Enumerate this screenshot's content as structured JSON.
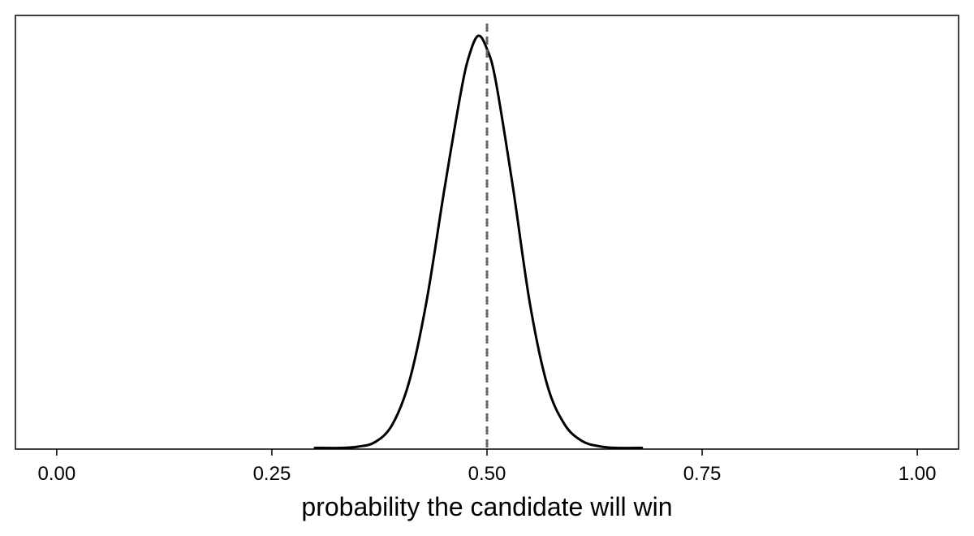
{
  "chart_data": {
    "type": "line",
    "title": "",
    "xlabel": "probability the candidate will win",
    "ylabel": "",
    "xlim": [
      -0.048,
      1.048
    ],
    "xticks": [
      0.0,
      0.25,
      0.5,
      0.75,
      1.0
    ],
    "xtick_labels": [
      "0.00",
      "0.25",
      "0.50",
      "0.75",
      "1.00"
    ],
    "yticks_visible": false,
    "grid": false,
    "legend": "none",
    "series": [
      {
        "kind": "density-curve",
        "color": "#000000",
        "x": [
          0.3,
          0.33,
          0.35,
          0.37,
          0.39,
          0.41,
          0.43,
          0.45,
          0.47,
          0.48,
          0.49,
          0.5,
          0.51,
          0.53,
          0.55,
          0.57,
          0.59,
          0.61,
          0.63,
          0.65,
          0.68
        ],
        "y": [
          0.0,
          0.0,
          0.003,
          0.014,
          0.056,
          0.162,
          0.355,
          0.615,
          0.858,
          0.947,
          0.99,
          0.958,
          0.883,
          0.628,
          0.345,
          0.151,
          0.057,
          0.017,
          0.004,
          0.0,
          0.0
        ]
      }
    ],
    "reference_line": {
      "x": 0.5,
      "style": "dashed",
      "color": "#666666"
    }
  }
}
